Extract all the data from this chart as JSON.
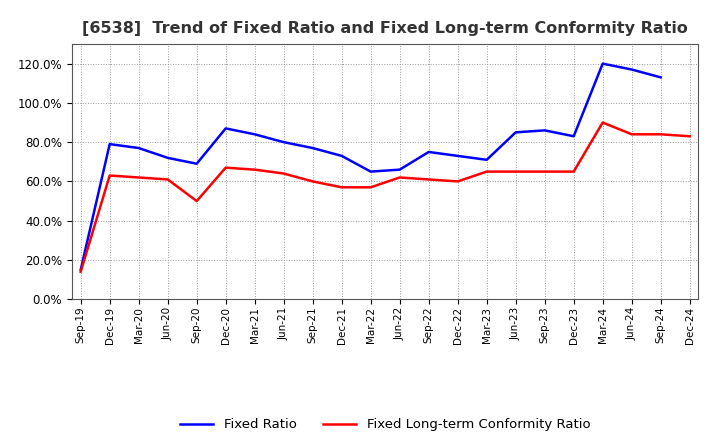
{
  "title": "[6538]  Trend of Fixed Ratio and Fixed Long-term Conformity Ratio",
  "x_labels": [
    "Sep-19",
    "Dec-19",
    "Mar-20",
    "Jun-20",
    "Sep-20",
    "Dec-20",
    "Mar-21",
    "Jun-21",
    "Sep-21",
    "Dec-21",
    "Mar-22",
    "Jun-22",
    "Sep-22",
    "Dec-22",
    "Mar-23",
    "Jun-23",
    "Sep-23",
    "Dec-23",
    "Mar-24",
    "Jun-24",
    "Sep-24",
    "Dec-24"
  ],
  "fixed_ratio": [
    15.0,
    79.0,
    77.0,
    72.0,
    69.0,
    87.0,
    84.0,
    80.0,
    77.0,
    73.0,
    65.0,
    66.0,
    75.0,
    73.0,
    71.0,
    85.0,
    86.0,
    83.0,
    120.0,
    117.0,
    113.0,
    null
  ],
  "fixed_lt_ratio": [
    14.0,
    63.0,
    62.0,
    61.0,
    50.0,
    67.0,
    66.0,
    64.0,
    60.0,
    57.0,
    57.0,
    62.0,
    61.0,
    60.0,
    65.0,
    65.0,
    65.0,
    65.0,
    90.0,
    84.0,
    84.0,
    83.0
  ],
  "fixed_ratio_color": "#0000FF",
  "fixed_lt_ratio_color": "#FF0000",
  "ylim": [
    0,
    130
  ],
  "yticks": [
    0,
    20,
    40,
    60,
    80,
    100,
    120
  ],
  "background_color": "#FFFFFF",
  "grid_color": "#AAAAAA",
  "legend_fixed_ratio": "Fixed Ratio",
  "legend_fixed_lt_ratio": "Fixed Long-term Conformity Ratio"
}
